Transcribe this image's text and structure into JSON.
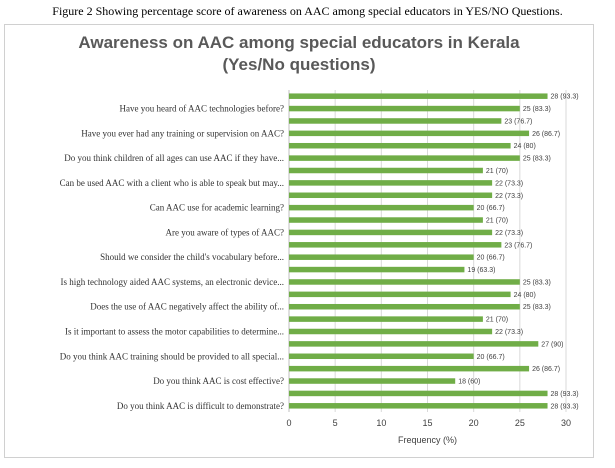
{
  "caption": "Figure 2 Showing percentage score of awareness on AAC among special educators in YES/NO Questions.",
  "chart_data": {
    "type": "bar",
    "orientation": "horizontal",
    "title_line1": "Awareness on AAC among special educators in Kerala",
    "title_line2": "(Yes/No questions)",
    "xlabel": "Frequency (%)",
    "ylabel": "",
    "xlim": [
      0,
      30
    ],
    "xticks": [
      0,
      5,
      10,
      15,
      20,
      25,
      30
    ],
    "grid": true,
    "bar_color": "#70ad47",
    "rows": [
      {
        "label": "",
        "value": 28,
        "data_label": "28 (93.3)"
      },
      {
        "label": "Have you heard of AAC technologies before?",
        "value": 25,
        "data_label": "25 (83.3)"
      },
      {
        "label": "",
        "value": 23,
        "data_label": "23 (76.7)"
      },
      {
        "label": "Have you ever had any training or supervision on AAC?",
        "value": 26,
        "data_label": "26 (86.7)"
      },
      {
        "label": "",
        "value": 24,
        "data_label": "24 (80)"
      },
      {
        "label": "Do you think children of all ages can use AAC if they have...",
        "value": 25,
        "data_label": "25 (83.3)"
      },
      {
        "label": "",
        "value": 21,
        "data_label": "21 (70)"
      },
      {
        "label": "Can be used AAC with a client who is able to speak but may...",
        "value": 22,
        "data_label": "22 (73.3)"
      },
      {
        "label": "",
        "value": 22,
        "data_label": "22 (73.3)"
      },
      {
        "label": "Can AAC use for academic learning?",
        "value": 20,
        "data_label": "20 (66.7)"
      },
      {
        "label": "",
        "value": 21,
        "data_label": "21 (70)"
      },
      {
        "label": "Are you aware of types of AAC?",
        "value": 22,
        "data_label": "22 (73.3)"
      },
      {
        "label": "",
        "value": 23,
        "data_label": "23 (76.7)"
      },
      {
        "label": "Should we consider the child's vocabulary before...",
        "value": 20,
        "data_label": "20 (66.7)"
      },
      {
        "label": "",
        "value": 19,
        "data_label": "19 (63.3)"
      },
      {
        "label": "Is high technology aided AAC systems, an electronic device...",
        "value": 25,
        "data_label": "25 (83.3)"
      },
      {
        "label": "",
        "value": 24,
        "data_label": "24 (80)"
      },
      {
        "label": "Does the use of AAC negatively affect the ability of...",
        "value": 25,
        "data_label": "25 (83.3)"
      },
      {
        "label": "",
        "value": 21,
        "data_label": "21 (70)"
      },
      {
        "label": "Is it important to assess the motor capabilities to determine...",
        "value": 22,
        "data_label": "22 (73.3)"
      },
      {
        "label": "",
        "value": 27,
        "data_label": "27 (90)"
      },
      {
        "label": "Do you think AAC training should be provided to all special...",
        "value": 20,
        "data_label": "20 (66.7)"
      },
      {
        "label": "",
        "value": 26,
        "data_label": "26 (86.7)"
      },
      {
        "label": "Do you think AAC is cost effective?",
        "value": 18,
        "data_label": "18 (60)"
      },
      {
        "label": "",
        "value": 28,
        "data_label": "28 (93.3)"
      },
      {
        "label": "Do you think AAC is difficult to demonstrate?",
        "value": 28,
        "data_label": "28 (93.3)"
      }
    ]
  }
}
